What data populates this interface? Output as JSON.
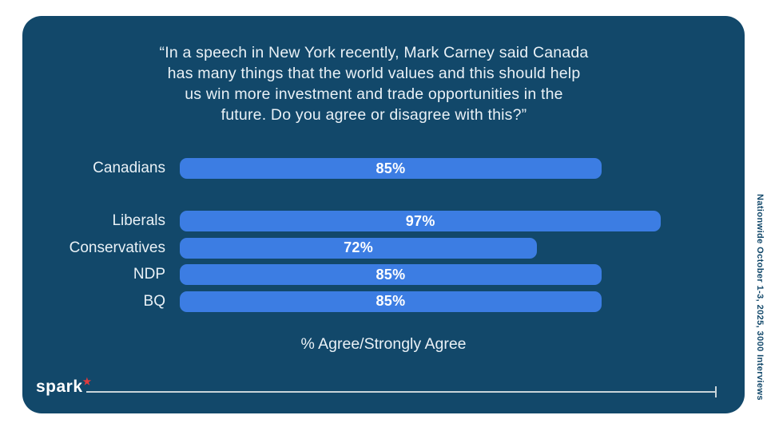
{
  "title_lines": [
    "“In a speech in New York recently, Mark Carney said Canada",
    "has many things that the world values and this should help",
    "us win more investment and trade opportunities in the",
    "future. Do you agree or disagree with this?”"
  ],
  "chart_data": {
    "type": "bar",
    "orientation": "horizontal",
    "title": "“In a speech in New York recently, Mark Carney said Canada has many things that the world values and this should help us win more investment and trade opportunities in the future. Do you agree or disagree with this?”",
    "categories": [
      "Canadians",
      "Liberals",
      "Conservatives",
      "NDP",
      "BQ"
    ],
    "values": [
      85,
      97,
      72,
      85,
      85
    ],
    "value_labels": [
      "85%",
      "97%",
      "72%",
      "85%",
      "85%"
    ],
    "xlabel": "% Agree/Strongly Agree",
    "xlim": [
      0,
      100
    ],
    "grid": false,
    "legend": false,
    "bar_color": "#3c7de3",
    "groups": [
      [
        "Canadians"
      ],
      [
        "Liberals",
        "Conservatives",
        "NDP",
        "BQ"
      ]
    ]
  },
  "footer": {
    "logo_text": "spark",
    "logo_mark": "★",
    "methodology_note": "Nationwide October 1-3, 2025, 3000 Interviews"
  },
  "colors": {
    "page_background": "#ffffff",
    "card_background": "#12486a",
    "bar": "#3c7de3",
    "text": "#e9f1f6",
    "value_text": "#ffffff",
    "rule": "#c8d4da",
    "logo_star": "#e23b3d"
  }
}
